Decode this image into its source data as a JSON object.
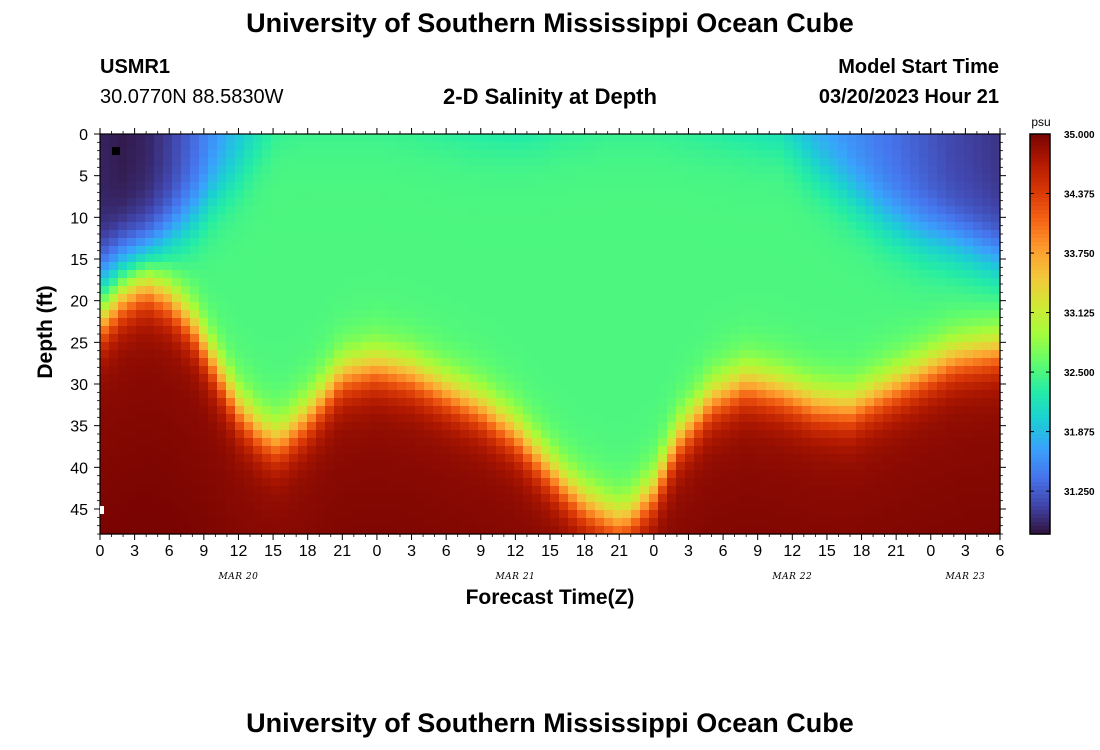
{
  "header": {
    "title": "University of Southern Mississippi Ocean Cube",
    "station_id": "USMR1",
    "station_coords": "30.0770N  88.5830W",
    "plot_title": "2-D Salinity at Depth",
    "model_start_label": "Model Start Time",
    "model_start_value": "03/20/2023 Hour 21"
  },
  "footer": {
    "title": "University of Southern Mississippi Ocean Cube"
  },
  "chart_data": {
    "type": "heatmap",
    "title": "2-D Salinity at Depth",
    "xlabel": "Forecast Time(Z)",
    "ylabel": "Depth (ft)",
    "x_range_hours": [
      0,
      78
    ],
    "y_range_ft": [
      0,
      48
    ],
    "y_inverted": true,
    "x_ticks": [
      "0",
      "3",
      "6",
      "9",
      "12",
      "15",
      "18",
      "21",
      "0",
      "3",
      "6",
      "9",
      "12",
      "15",
      "18",
      "21",
      "0",
      "3",
      "6",
      "9",
      "12",
      "15",
      "18",
      "21",
      "0",
      "3",
      "6"
    ],
    "y_ticks": [
      0,
      5,
      10,
      15,
      20,
      25,
      30,
      35,
      40,
      45
    ],
    "date_labels": [
      {
        "text": "MAR 20",
        "hour": 12
      },
      {
        "text": "MAR 21",
        "hour": 36
      },
      {
        "text": "MAR 22",
        "hour": 60
      },
      {
        "text": "MAR 23",
        "hour": 75
      }
    ],
    "colorbar": {
      "unit": "psu",
      "min": 30.8,
      "max": 35.0,
      "ticks": [
        "35.000",
        "34.375",
        "33.750",
        "33.125",
        "32.500",
        "31.875",
        "31.250"
      ],
      "colors": [
        "#30123b",
        "#4145ab",
        "#4675ed",
        "#39a2fc",
        "#1bcfd4",
        "#24eca6",
        "#61fc6c",
        "#a4fc3b",
        "#d1e834",
        "#f3c63a",
        "#fe9b2d",
        "#f36315",
        "#d93806",
        "#b11901",
        "#7a0402"
      ]
    },
    "profile_hours": [
      0,
      2,
      4,
      6,
      8,
      10,
      12,
      14,
      15.5,
      18,
      21,
      24,
      27,
      30,
      33,
      36,
      38,
      40,
      42,
      44,
      45,
      46,
      48,
      50,
      53,
      56,
      59,
      62,
      65,
      68,
      71,
      74,
      78
    ],
    "interface_depth_ft": [
      23,
      20,
      18.5,
      20,
      23,
      28,
      33,
      36,
      37,
      34,
      29,
      28,
      29,
      31,
      33,
      36,
      39,
      42,
      44.5,
      46,
      46.5,
      46,
      43,
      37,
      32,
      30,
      31,
      32.5,
      33,
      31,
      29,
      27,
      26
    ],
    "surface_salinity_psu": [
      30.9,
      30.85,
      30.9,
      31.05,
      31.3,
      31.6,
      31.9,
      32.15,
      32.3,
      32.35,
      32.35,
      32.35,
      32.3,
      32.2,
      32.1,
      32.05,
      32.1,
      32.2,
      32.25,
      32.3,
      32.3,
      32.3,
      32.3,
      32.25,
      32.15,
      32.0,
      31.85,
      31.7,
      31.55,
      31.4,
      31.25,
      31.1,
      31.0
    ],
    "fresh_layer_depth_ft": [
      17,
      15,
      14,
      12,
      10,
      7,
      5,
      2,
      0,
      0,
      0,
      0,
      0,
      0,
      0,
      0,
      0,
      0,
      0,
      0,
      0,
      0,
      0,
      0,
      0,
      0,
      0,
      4,
      7,
      10,
      12,
      13,
      15
    ],
    "mid_layer_salinity_psu": 32.5,
    "deep_salinity_psu": 34.9
  }
}
